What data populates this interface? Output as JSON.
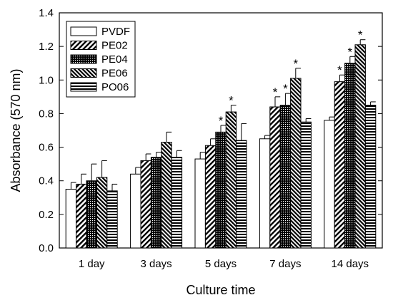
{
  "chart_data": {
    "type": "bar",
    "xlabel": "Culture time",
    "ylabel": "Absorbance (570 nm)",
    "ylim": [
      0,
      1.4
    ],
    "yticks": [
      "0.0",
      "0.2",
      "0.4",
      "0.6",
      "0.8",
      "1.0",
      "1.2",
      "1.4"
    ],
    "categories": [
      "1 day",
      "3 days",
      "5 days",
      "7 days",
      "14 days"
    ],
    "legend_position": "top-left",
    "significance_marker": "*",
    "series": [
      {
        "name": "PVDF",
        "pattern": "solid-white",
        "values": [
          0.35,
          0.44,
          0.53,
          0.65,
          0.76
        ],
        "errors": [
          0.04,
          0.04,
          0.04,
          0.02,
          0.02
        ],
        "significant": [
          false,
          false,
          false,
          false,
          false
        ]
      },
      {
        "name": "PE02",
        "pattern": "diagonal-lines",
        "values": [
          0.38,
          0.52,
          0.61,
          0.84,
          0.99
        ],
        "errors": [
          0.06,
          0.04,
          0.04,
          0.06,
          0.04
        ],
        "significant": [
          false,
          false,
          false,
          true,
          true
        ]
      },
      {
        "name": "PE04",
        "pattern": "dense-dots",
        "values": [
          0.4,
          0.54,
          0.69,
          0.85,
          1.1
        ],
        "errors": [
          0.1,
          0.03,
          0.04,
          0.07,
          0.04
        ],
        "significant": [
          false,
          false,
          true,
          true,
          true
        ]
      },
      {
        "name": "PE06",
        "pattern": "dense-diagonal",
        "values": [
          0.42,
          0.63,
          0.81,
          1.01,
          1.21
        ],
        "errors": [
          0.1,
          0.06,
          0.04,
          0.06,
          0.03
        ],
        "significant": [
          false,
          false,
          true,
          true,
          true
        ]
      },
      {
        "name": "PO06",
        "pattern": "horizontal-lines",
        "values": [
          0.34,
          0.54,
          0.64,
          0.75,
          0.85
        ],
        "errors": [
          0.04,
          0.04,
          0.1,
          0.02,
          0.02
        ],
        "significant": [
          false,
          false,
          false,
          false,
          false
        ]
      }
    ]
  }
}
